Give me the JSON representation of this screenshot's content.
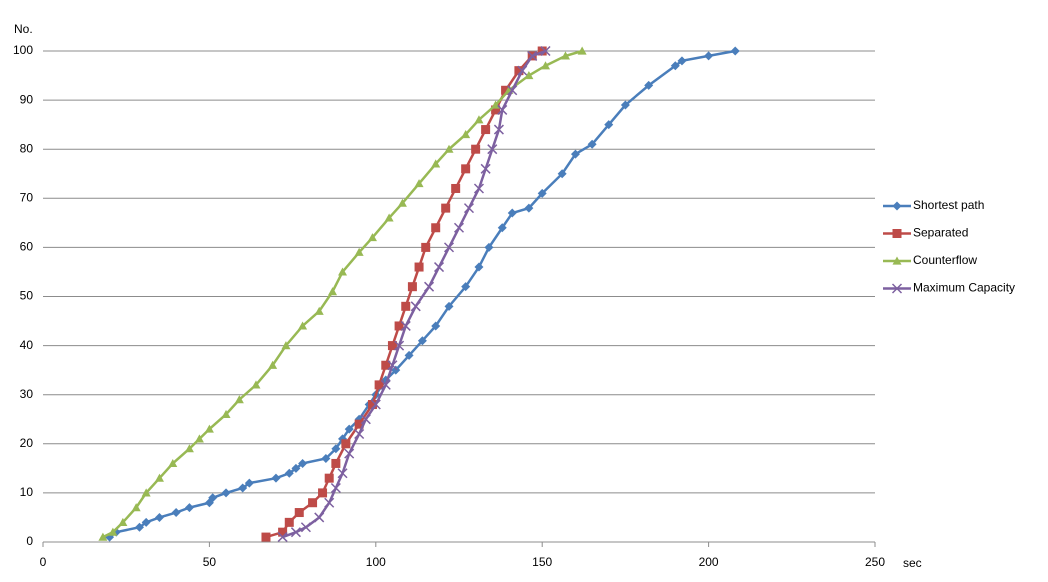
{
  "chart_data": {
    "type": "line",
    "ylabel": "No.",
    "xlabel": "sec",
    "xlim": [
      0,
      250
    ],
    "xticks": [
      0,
      50,
      100,
      150,
      200,
      250
    ],
    "ylim": [
      0,
      100
    ],
    "yticks": [
      0,
      10,
      20,
      30,
      40,
      50,
      60,
      70,
      80,
      90,
      100
    ],
    "grid": true,
    "legend": "right",
    "series": [
      {
        "name": "Shortest path",
        "color": "#4a7ebb",
        "marker": "diamond",
        "x": [
          20,
          22,
          29,
          31,
          35,
          40,
          44,
          50,
          51,
          55,
          60,
          62,
          70,
          74,
          76,
          78,
          85,
          88,
          90,
          92,
          95,
          98,
          100,
          103,
          106,
          110,
          114,
          118,
          122,
          127,
          131,
          134,
          138,
          141,
          146,
          150,
          156,
          160,
          165,
          170,
          175,
          182,
          190,
          192,
          200,
          208
        ],
        "values": [
          1,
          2,
          3,
          4,
          5,
          6,
          7,
          8,
          9,
          10,
          11,
          12,
          13,
          14,
          15,
          16,
          17,
          19,
          21,
          23,
          25,
          28,
          30,
          33,
          35,
          38,
          41,
          44,
          48,
          52,
          56,
          60,
          64,
          67,
          68,
          71,
          75,
          79,
          81,
          85,
          89,
          93,
          97,
          98,
          99,
          100
        ]
      },
      {
        "name": "Separated",
        "color": "#be4b48",
        "marker": "square",
        "x": [
          67,
          72,
          74,
          77,
          81,
          84,
          86,
          88,
          91,
          95,
          99,
          101,
          103,
          105,
          107,
          109,
          111,
          113,
          115,
          118,
          121,
          124,
          127,
          130,
          133,
          136,
          139,
          143,
          147,
          150
        ],
        "values": [
          1,
          2,
          4,
          6,
          8,
          10,
          13,
          16,
          20,
          24,
          28,
          32,
          36,
          40,
          44,
          48,
          52,
          56,
          60,
          64,
          68,
          72,
          76,
          80,
          84,
          88,
          92,
          96,
          99,
          100
        ]
      },
      {
        "name": "Counterflow",
        "color": "#98b954",
        "marker": "triangle",
        "x": [
          18,
          21,
          24,
          28,
          31,
          35,
          39,
          44,
          47,
          50,
          55,
          59,
          64,
          69,
          73,
          78,
          83,
          87,
          90,
          95,
          99,
          104,
          108,
          113,
          118,
          122,
          127,
          131,
          136,
          140,
          146,
          151,
          157,
          162
        ],
        "values": [
          1,
          2,
          4,
          7,
          10,
          13,
          16,
          19,
          21,
          23,
          26,
          29,
          32,
          36,
          40,
          44,
          47,
          51,
          55,
          59,
          62,
          66,
          69,
          73,
          77,
          80,
          83,
          86,
          89,
          92,
          95,
          97,
          99,
          100
        ]
      },
      {
        "name": "Maximum Capacity",
        "color": "#7d60a0",
        "marker": "x",
        "x": [
          72,
          76,
          79,
          83,
          86,
          88,
          90,
          92,
          95,
          97,
          100,
          103,
          105,
          107,
          109,
          112,
          116,
          119,
          122,
          125,
          128,
          131,
          133,
          135,
          137,
          138,
          141,
          144,
          147,
          151
        ],
        "values": [
          1,
          2,
          3,
          5,
          8,
          11,
          14,
          18,
          22,
          25,
          28,
          32,
          36,
          40,
          44,
          48,
          52,
          56,
          60,
          64,
          68,
          72,
          76,
          80,
          84,
          88,
          92,
          96,
          99,
          100
        ]
      }
    ]
  }
}
